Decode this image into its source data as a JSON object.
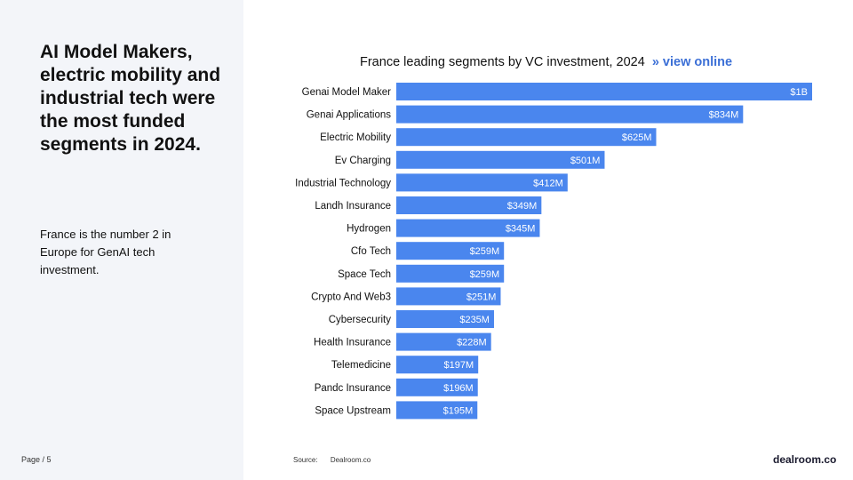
{
  "left": {
    "headline": "AI Model Makers, electric mobility and industrial tech were the most funded segments in 2024.",
    "subtext": "France is the number 2 in Europe for GenAI tech investment.",
    "page_label": "Page / 5"
  },
  "chart_header": {
    "title": "France leading segments by VC investment, 2024",
    "link": "» view online"
  },
  "footer": {
    "source_label": "Source:",
    "source_value": "Dealroom.co",
    "brand": "dealroom.co"
  },
  "colors": {
    "bar": "#4a86ee",
    "bar_label": "#ffffff",
    "accent_link": "#3b6fd6",
    "panel": "#f3f5f9"
  },
  "chart_data": {
    "type": "bar",
    "orientation": "horizontal",
    "title": "France leading segments by VC investment, 2024",
    "categories": [
      "Genai Model Maker",
      "Genai Applications",
      "Electric Mobility",
      "Ev Charging",
      "Industrial Technology",
      "Landh Insurance",
      "Hydrogen",
      "Cfo Tech",
      "Space Tech",
      "Crypto And Web3",
      "Cybersecurity",
      "Health Insurance",
      "Telemedicine",
      "Pandc Insurance",
      "Space Upstream"
    ],
    "values": [
      1000,
      834,
      625,
      501,
      412,
      349,
      345,
      259,
      259,
      251,
      235,
      228,
      197,
      196,
      195
    ],
    "value_unit": "$M",
    "data_labels": [
      "$1B",
      "$834M",
      "$625M",
      "$501M",
      "$412M",
      "$349M",
      "$345M",
      "$259M",
      "$259M",
      "$251M",
      "$235M",
      "$228M",
      "$197M",
      "$196M",
      "$195M"
    ],
    "xlim": [
      0,
      1000
    ],
    "grid": false,
    "legend": "none"
  }
}
